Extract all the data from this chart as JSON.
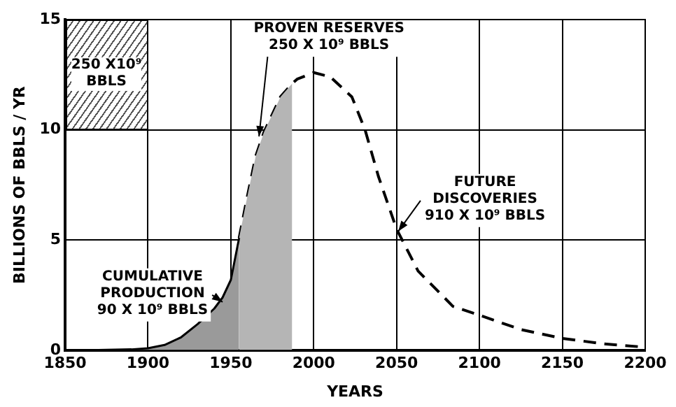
{
  "chart_data": {
    "type": "area",
    "xlabel": "YEARS",
    "ylabel": "BILLIONS OF BBLS / YR",
    "xlim": [
      1850,
      2200
    ],
    "xticks": [
      1850,
      1900,
      1950,
      2000,
      2050,
      2100,
      2150,
      2200
    ],
    "ylim": [
      0,
      15
    ],
    "yticks": [
      0,
      5,
      10,
      15
    ],
    "grid": true,
    "legend": false,
    "series": [
      {
        "color": "#9a9a9a",
        "line_style": "solid",
        "x": [
          1850,
          1870,
          1890,
          1900,
          1910,
          1920,
          1930,
          1940,
          1945,
          1950,
          1955
        ],
        "values": [
          0,
          0.02,
          0.05,
          0.1,
          0.25,
          0.6,
          1.2,
          1.9,
          2.4,
          3.2,
          5.1
        ]
      },
      {
        "color": "#b5b5b5",
        "line_style": "none",
        "x": [
          1955,
          1960,
          1965,
          1970,
          1980,
          1987
        ],
        "values": [
          5.1,
          7,
          8.8,
          9.9,
          11.5,
          12.1
        ]
      },
      {
        "type": "line",
        "color": "#000000",
        "line_style": "dashed",
        "x": [
          1955,
          1960,
          1965,
          1970,
          1980,
          1987,
          1990,
          2000,
          2010,
          2023,
          2031,
          2039,
          2050,
          2063,
          2084,
          2100,
          2125,
          2150,
          2175,
          2200
        ],
        "values": [
          5.1,
          7,
          8.8,
          9.9,
          11.5,
          12.1,
          12.3,
          12.6,
          12.4,
          11.5,
          10,
          7.9,
          5.5,
          3.6,
          2.0,
          1.6,
          0.95,
          0.55,
          0.3,
          0.15
        ]
      }
    ],
    "annotations": [
      "250 X10⁹\nBBLS",
      {
        "text": "PROVEN RESERVES\n250 X 10⁹ BBLS",
        "x": 1967,
        "y": 9.7
      },
      {
        "text": "CUMULATIVE\nPRODUCTION\n90 X 10⁹ BBLS",
        "x": 1945,
        "y": 2.2
      },
      {
        "text": "FUTURE\nDISCOVERIES\n910 X 10⁹ BBLS",
        "x": 2051,
        "y": 5.4
      }
    ]
  }
}
